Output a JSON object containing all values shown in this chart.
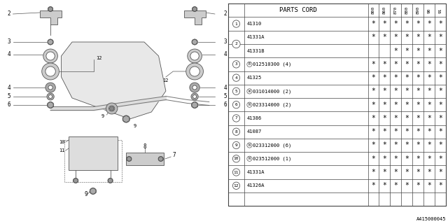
{
  "figure_id": "A415000045",
  "bg_color": "#ffffff",
  "lc": "#555555",
  "tc": "#000000",
  "tlc": "#444444",
  "col_headers": [
    "800",
    "860",
    "870",
    "880",
    "890",
    "90",
    "91"
  ],
  "rows": [
    {
      "num": "1",
      "part": "41310",
      "prefix": "",
      "stars": [
        1,
        1,
        1,
        1,
        1,
        1,
        1
      ]
    },
    {
      "num": "2",
      "part": "41331A",
      "prefix": "",
      "stars": [
        1,
        1,
        1,
        1,
        1,
        1,
        1
      ]
    },
    {
      "num": null,
      "part": "41331B",
      "prefix": "",
      "stars": [
        0,
        0,
        1,
        1,
        1,
        1,
        1
      ]
    },
    {
      "num": "3",
      "part": "012510300 (4)",
      "prefix": "B",
      "stars": [
        1,
        1,
        1,
        1,
        1,
        1,
        1
      ]
    },
    {
      "num": "4",
      "part": "41325",
      "prefix": "",
      "stars": [
        1,
        1,
        1,
        1,
        1,
        1,
        1
      ]
    },
    {
      "num": "5",
      "part": "031014000 (2)",
      "prefix": "W",
      "stars": [
        1,
        1,
        1,
        1,
        1,
        1,
        1
      ]
    },
    {
      "num": "6",
      "part": "023314000 (2)",
      "prefix": "N",
      "stars": [
        1,
        1,
        1,
        1,
        1,
        1,
        1
      ]
    },
    {
      "num": "7",
      "part": "41386",
      "prefix": "",
      "stars": [
        1,
        1,
        1,
        1,
        1,
        1,
        1
      ]
    },
    {
      "num": "8",
      "part": "41087",
      "prefix": "",
      "stars": [
        1,
        1,
        1,
        1,
        1,
        1,
        1
      ]
    },
    {
      "num": "9",
      "part": "023312000 (6)",
      "prefix": "N",
      "stars": [
        1,
        1,
        1,
        1,
        1,
        1,
        1
      ]
    },
    {
      "num": "10",
      "part": "023512000 (1)",
      "prefix": "N",
      "stars": [
        1,
        1,
        1,
        1,
        1,
        1,
        1
      ]
    },
    {
      "num": "11",
      "part": "41331A",
      "prefix": "",
      "stars": [
        1,
        1,
        1,
        1,
        1,
        1,
        1
      ]
    },
    {
      "num": "12",
      "part": "41326A",
      "prefix": "",
      "stars": [
        1,
        1,
        1,
        1,
        1,
        1,
        1
      ]
    }
  ]
}
